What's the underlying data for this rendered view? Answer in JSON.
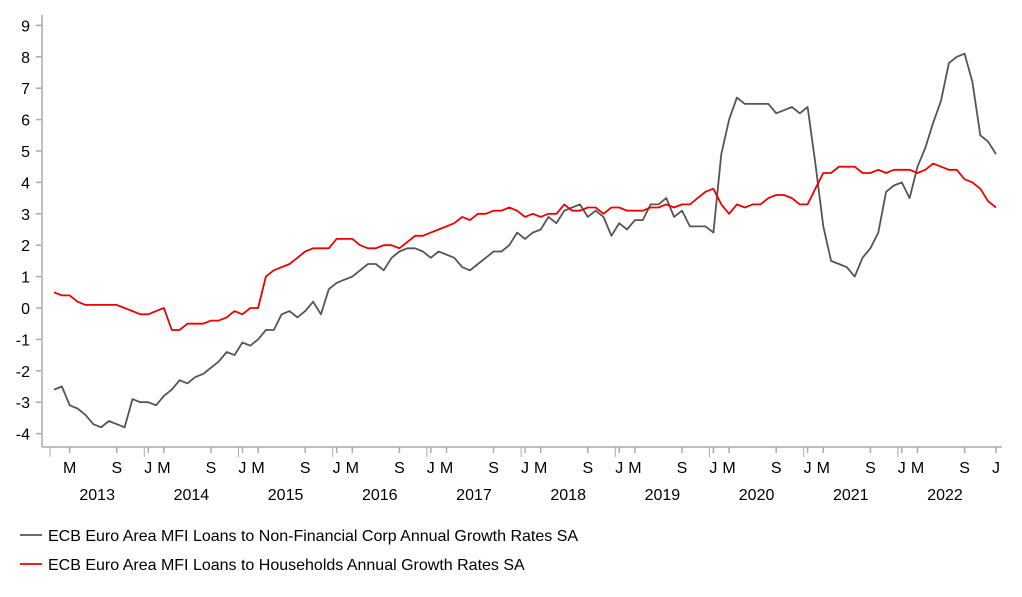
{
  "chart_data": {
    "type": "line",
    "title": "",
    "xlabel": "",
    "ylabel": "",
    "ylim": [
      -4,
      9
    ],
    "yticks": [
      "9",
      "8",
      "7",
      "6",
      "5",
      "4",
      "3",
      "2",
      "1",
      "0",
      "-1",
      "-2",
      "-3",
      "-4"
    ],
    "x_start": "2013-01",
    "x_end": "2023-01",
    "frequency": "monthly",
    "month_tick_labels": [
      "M",
      "S",
      "J"
    ],
    "year_labels": [
      "2013",
      "2014",
      "2015",
      "2016",
      "2017",
      "2018",
      "2019",
      "2020",
      "2021",
      "2022"
    ],
    "legend_position": "bottom-left",
    "series": [
      {
        "name": "ECB Euro Area MFI Loans to Non-Financial Corp Annual Growth Rates SA",
        "color": "#555555",
        "values": [
          -2.6,
          -2.5,
          -3.1,
          -3.2,
          -3.4,
          -3.7,
          -3.8,
          -3.6,
          -3.7,
          -3.8,
          -2.9,
          -3.0,
          -3.0,
          -3.1,
          -2.8,
          -2.6,
          -2.3,
          -2.4,
          -2.2,
          -2.1,
          -1.9,
          -1.7,
          -1.4,
          -1.5,
          -1.1,
          -1.2,
          -1.0,
          -0.7,
          -0.7,
          -0.2,
          -0.1,
          -0.3,
          -0.1,
          0.2,
          -0.2,
          0.6,
          0.8,
          0.9,
          1.0,
          1.2,
          1.4,
          1.4,
          1.2,
          1.6,
          1.8,
          1.9,
          1.9,
          1.8,
          1.6,
          1.8,
          1.7,
          1.6,
          1.3,
          1.2,
          1.4,
          1.6,
          1.8,
          1.8,
          2.0,
          2.4,
          2.2,
          2.4,
          2.5,
          2.9,
          2.7,
          3.1,
          3.2,
          3.3,
          2.9,
          3.1,
          2.9,
          2.3,
          2.7,
          2.5,
          2.8,
          2.8,
          3.3,
          3.3,
          3.5,
          2.9,
          3.1,
          2.6,
          2.6,
          2.6,
          2.4,
          4.9,
          6.0,
          6.7,
          6.5,
          6.5,
          6.5,
          6.5,
          6.2,
          6.3,
          6.4,
          6.2,
          6.4,
          4.6,
          2.6,
          1.5,
          1.4,
          1.3,
          1.0,
          1.6,
          1.9,
          2.4,
          3.7,
          3.9,
          4.0,
          3.5,
          4.5,
          5.1,
          5.9,
          6.6,
          7.8,
          8.0,
          8.1,
          7.2,
          5.5,
          5.3,
          4.9
        ]
      },
      {
        "name": "ECB Euro Area MFI Loans to Households Annual Growth Rates SA",
        "color": "#ee0000",
        "values": [
          0.5,
          0.4,
          0.4,
          0.2,
          0.1,
          0.1,
          0.1,
          0.1,
          0.1,
          0.0,
          -0.1,
          -0.2,
          -0.2,
          -0.1,
          0.0,
          -0.7,
          -0.7,
          -0.5,
          -0.5,
          -0.5,
          -0.4,
          -0.4,
          -0.3,
          -0.1,
          -0.2,
          0.0,
          0.0,
          1.0,
          1.2,
          1.3,
          1.4,
          1.6,
          1.8,
          1.9,
          1.9,
          1.9,
          2.2,
          2.2,
          2.2,
          2.0,
          1.9,
          1.9,
          2.0,
          2.0,
          1.9,
          2.1,
          2.3,
          2.3,
          2.4,
          2.5,
          2.6,
          2.7,
          2.9,
          2.8,
          3.0,
          3.0,
          3.1,
          3.1,
          3.2,
          3.1,
          2.9,
          3.0,
          2.9,
          3.0,
          3.0,
          3.3,
          3.1,
          3.1,
          3.2,
          3.2,
          3.0,
          3.2,
          3.2,
          3.1,
          3.1,
          3.1,
          3.2,
          3.2,
          3.3,
          3.2,
          3.3,
          3.3,
          3.5,
          3.7,
          3.8,
          3.3,
          3.0,
          3.3,
          3.2,
          3.3,
          3.3,
          3.5,
          3.6,
          3.6,
          3.5,
          3.3,
          3.3,
          3.8,
          4.3,
          4.3,
          4.5,
          4.5,
          4.5,
          4.3,
          4.3,
          4.4,
          4.3,
          4.4,
          4.4,
          4.4,
          4.3,
          4.4,
          4.6,
          4.5,
          4.4,
          4.4,
          4.1,
          4.0,
          3.8,
          3.4,
          3.2
        ]
      }
    ]
  }
}
